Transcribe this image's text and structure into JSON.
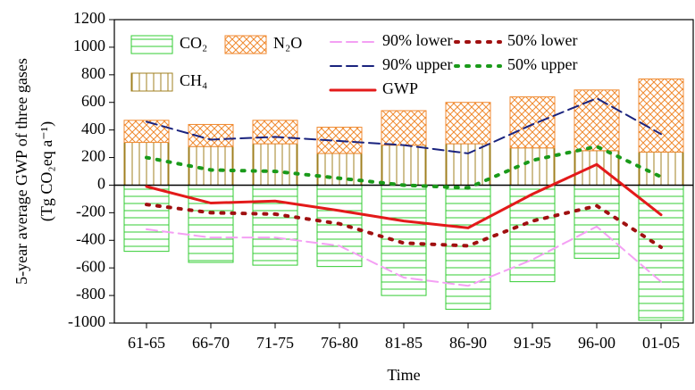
{
  "chart_data": {
    "type": "bar",
    "xlabel": "Time",
    "ylabel": [
      "5-year average GWP of three gases",
      "(Tg CO₂eq a⁻¹)"
    ],
    "categories": [
      "61-65",
      "66-70",
      "71-75",
      "76-80",
      "81-85",
      "86-90",
      "91-95",
      "96-00",
      "01-05"
    ],
    "ylim": [
      -1000,
      1200
    ],
    "yticks": [
      -1000,
      -800,
      -600,
      -400,
      -200,
      0,
      200,
      400,
      600,
      800,
      1000,
      1200
    ],
    "series": [
      {
        "name": "CO₂",
        "type": "bar",
        "color": "#33cc33",
        "hatch": "horizontal",
        "values": [
          -480,
          -560,
          -580,
          -590,
          -800,
          -900,
          -700,
          -530,
          -980
        ]
      },
      {
        "name": "CH₄",
        "type": "bar",
        "color": "#a08020",
        "hatch": "vertical",
        "values": [
          310,
          280,
          300,
          230,
          290,
          300,
          270,
          250,
          240
        ]
      },
      {
        "name": "N₂O",
        "type": "bar",
        "color": "#f08a30",
        "hatch": "cross",
        "values": [
          160,
          160,
          170,
          190,
          250,
          300,
          370,
          440,
          530
        ]
      },
      {
        "name": "90% lower",
        "type": "line",
        "color": "#f4a0f4",
        "dash": "dashed",
        "values": [
          -320,
          -380,
          -380,
          -440,
          -670,
          -730,
          -540,
          -300,
          -700
        ]
      },
      {
        "name": "50% lower",
        "type": "line",
        "color": "#a01010",
        "dash": "dotted",
        "values": [
          -140,
          -200,
          -210,
          -280,
          -420,
          -440,
          -260,
          -150,
          -450
        ]
      },
      {
        "name": "90% upper",
        "type": "line",
        "color": "#1a237e",
        "dash": "dashed",
        "values": [
          460,
          330,
          350,
          320,
          290,
          230,
          440,
          630,
          370
        ]
      },
      {
        "name": "50% upper",
        "type": "line",
        "color": "#1a9a1a",
        "dash": "dotted",
        "values": [
          200,
          110,
          100,
          50,
          0,
          -20,
          180,
          280,
          60
        ]
      },
      {
        "name": "GWP",
        "type": "line",
        "color": "#e31a1a",
        "dash": "solid",
        "values": [
          -10,
          -130,
          -115,
          -185,
          -260,
          -310,
          -65,
          150,
          -215
        ]
      }
    ]
  }
}
